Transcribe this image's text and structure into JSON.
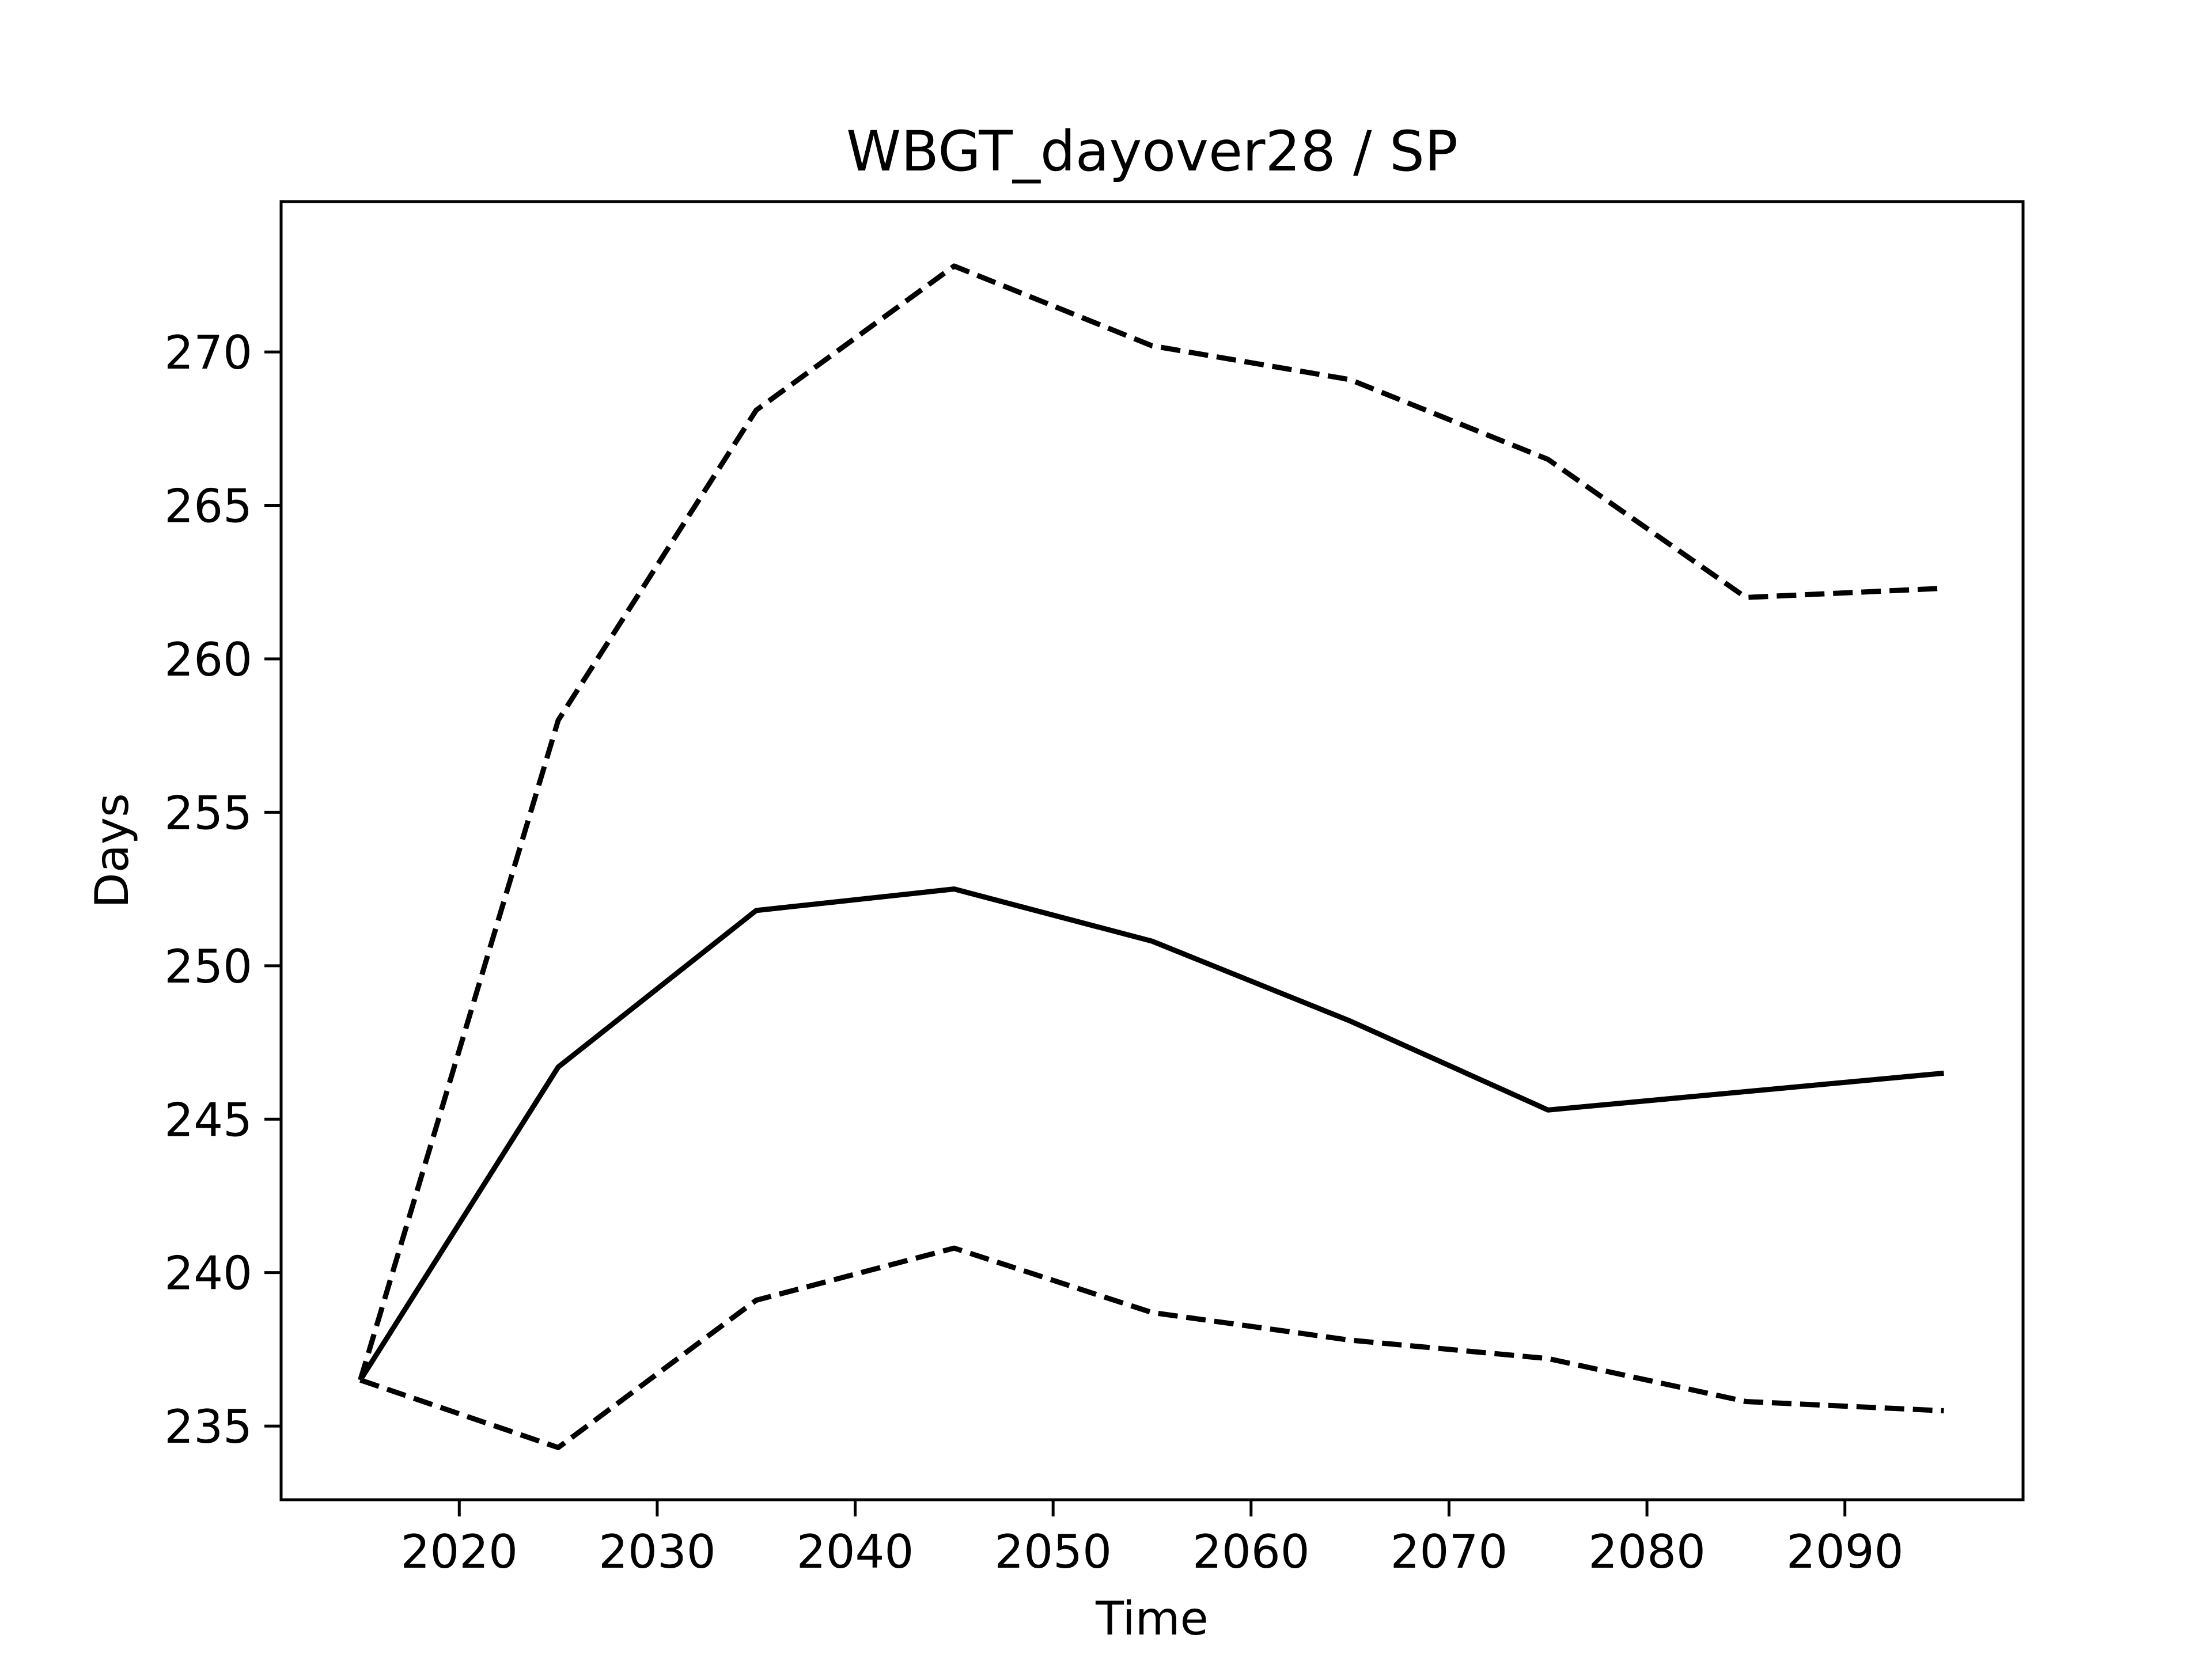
{
  "chart_data": {
    "type": "line",
    "title": "WBGT_dayover28 / SP",
    "xlabel": "Time",
    "ylabel": "Days",
    "xlim": [
      2011,
      2099
    ],
    "ylim": [
      232.6,
      274.9
    ],
    "xticks": [
      2020,
      2030,
      2040,
      2050,
      2060,
      2070,
      2080,
      2090
    ],
    "yticks": [
      235,
      240,
      245,
      250,
      255,
      260,
      265,
      270
    ],
    "grid": false,
    "legend": "none",
    "x": [
      2015,
      2025,
      2035,
      2045,
      2055,
      2065,
      2075,
      2085,
      2095
    ],
    "series": [
      {
        "style": "dashed",
        "color": "#000000",
        "values": [
          236.5,
          258.0,
          268.1,
          272.8,
          270.2,
          269.1,
          266.5,
          262.0,
          262.3
        ]
      },
      {
        "style": "solid",
        "color": "#000000",
        "values": [
          236.5,
          246.7,
          251.8,
          252.5,
          250.8,
          248.2,
          245.3,
          245.9,
          246.5
        ]
      },
      {
        "style": "dashed",
        "color": "#000000",
        "values": [
          236.5,
          234.3,
          239.1,
          240.8,
          238.7,
          237.8,
          237.2,
          235.8,
          235.5
        ]
      }
    ]
  }
}
